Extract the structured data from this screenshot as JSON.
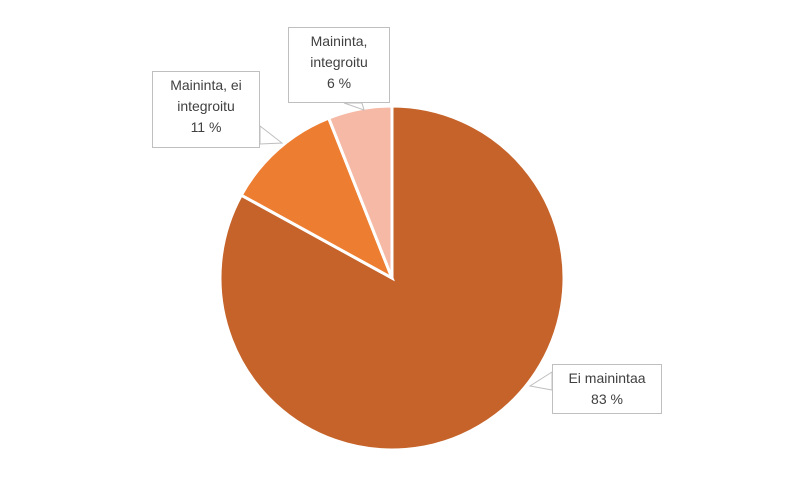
{
  "chart_data": {
    "type": "pie",
    "categories": [
      "Ei mainintaa",
      "Maininta, ei integroitu",
      "Maininta, integroitu"
    ],
    "values": [
      83,
      11,
      6
    ],
    "value_labels": [
      "83 %",
      "11 %",
      "6 %"
    ],
    "colors": [
      "#c5632a",
      "#ed7d31",
      "#f5b9a5"
    ]
  }
}
